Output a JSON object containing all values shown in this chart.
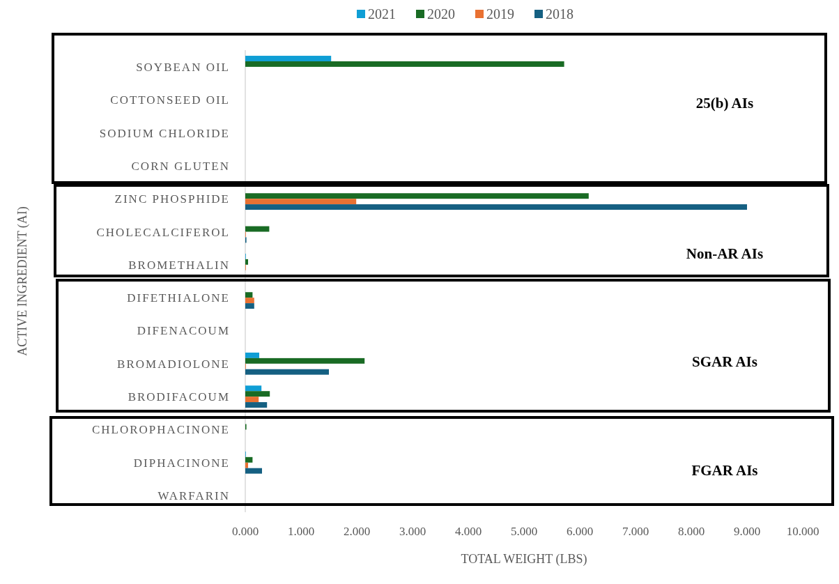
{
  "chart_data": {
    "type": "bar",
    "orientation": "horizontal",
    "xlabel": "TOTAL WEIGHT (LBS)",
    "ylabel": "ACTIVE INGREDIENT (AI)",
    "categories": [
      "SOYBEAN OIL",
      "COTTONSEED OIL",
      "SODIUM CHLORIDE",
      "CORN GLUTEN",
      "ZINC PHOSPHIDE",
      "CHOLECALCIFEROL",
      "BROMETHALIN",
      "DIFETHIALONE",
      "DIFENACOUM",
      "BROMADIOLONE",
      "BRODIFACOUM",
      "CHLOROPHACINONE",
      "DIPHACINONE",
      "WARFARIN"
    ],
    "series": [
      {
        "name": "2021",
        "color": "#0f9ed5",
        "values": [
          1.54,
          null,
          null,
          null,
          null,
          null,
          0.01,
          null,
          null,
          0.25,
          0.29,
          null,
          0.01,
          null
        ]
      },
      {
        "name": "2020",
        "color": "#196b24",
        "values": [
          5.72,
          null,
          null,
          null,
          6.16,
          0.43,
          0.05,
          0.13,
          null,
          2.14,
          0.44,
          0.02,
          0.13,
          null
        ]
      },
      {
        "name": "2019",
        "color": "#e97132",
        "values": [
          null,
          null,
          null,
          null,
          1.99,
          0.01,
          0.01,
          0.16,
          null,
          0.01,
          0.24,
          null,
          0.05,
          null
        ]
      },
      {
        "name": "2018",
        "color": "#156082",
        "values": [
          null,
          null,
          null,
          null,
          9.0,
          0.02,
          null,
          0.16,
          null,
          1.5,
          0.39,
          null,
          0.3,
          null
        ]
      }
    ],
    "xlim": [
      0,
      10
    ],
    "xticks": [
      {
        "value": 0,
        "label": "0.000"
      },
      {
        "value": 1,
        "label": "1.000"
      },
      {
        "value": 2,
        "label": "2.000"
      },
      {
        "value": 3,
        "label": "3.000"
      },
      {
        "value": 4,
        "label": "4.000"
      },
      {
        "value": 5,
        "label": "5.000"
      },
      {
        "value": 6,
        "label": "6.000"
      },
      {
        "value": 7,
        "label": "7.000"
      },
      {
        "value": 8,
        "label": "8.000"
      },
      {
        "value": 9,
        "label": "9.000"
      },
      {
        "value": 10,
        "label": "10.000"
      }
    ],
    "annotations": [
      "25(b) AIs",
      "Non-AR AIs",
      "SGAR AIs",
      "FGAR AIs"
    ],
    "grid": false,
    "legend": "top"
  }
}
